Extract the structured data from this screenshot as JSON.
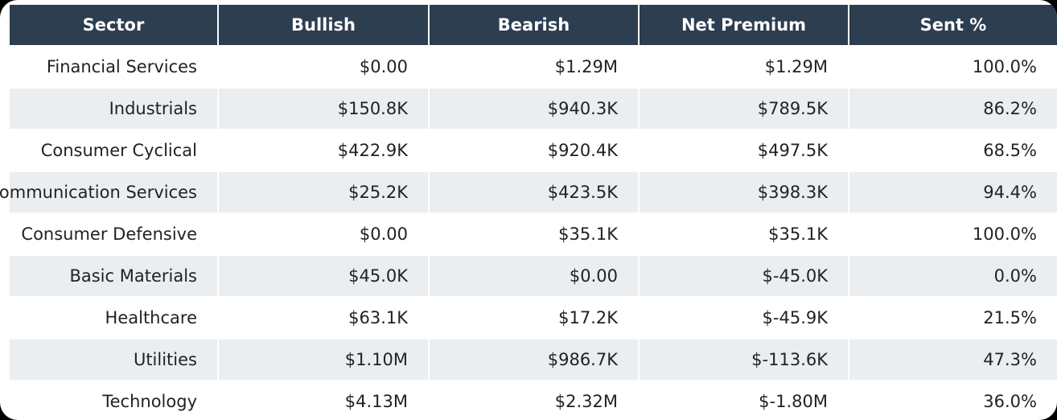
{
  "table": {
    "columns": [
      "Sector",
      "Bullish",
      "Bearish",
      "Net Premium",
      "Sent %"
    ],
    "rows": [
      [
        "Financial Services",
        "$0.00",
        "$1.29M",
        "$1.29M",
        "100.0%"
      ],
      [
        "Industrials",
        "$150.8K",
        "$940.3K",
        "$789.5K",
        "86.2%"
      ],
      [
        "Consumer Cyclical",
        "$422.9K",
        "$920.4K",
        "$497.5K",
        "68.5%"
      ],
      [
        "Communication Services",
        "$25.2K",
        "$423.5K",
        "$398.3K",
        "94.4%"
      ],
      [
        "Consumer Defensive",
        "$0.00",
        "$35.1K",
        "$35.1K",
        "100.0%"
      ],
      [
        "Basic Materials",
        "$45.0K",
        "$0.00",
        "$-45.0K",
        "0.0%"
      ],
      [
        "Healthcare",
        "$63.1K",
        "$17.2K",
        "$-45.9K",
        "21.5%"
      ],
      [
        "Utilities",
        "$1.10M",
        "$986.7K",
        "$-113.6K",
        "47.3%"
      ],
      [
        "Technology",
        "$4.13M",
        "$2.32M",
        "$-1.80M",
        "36.0%"
      ]
    ]
  }
}
